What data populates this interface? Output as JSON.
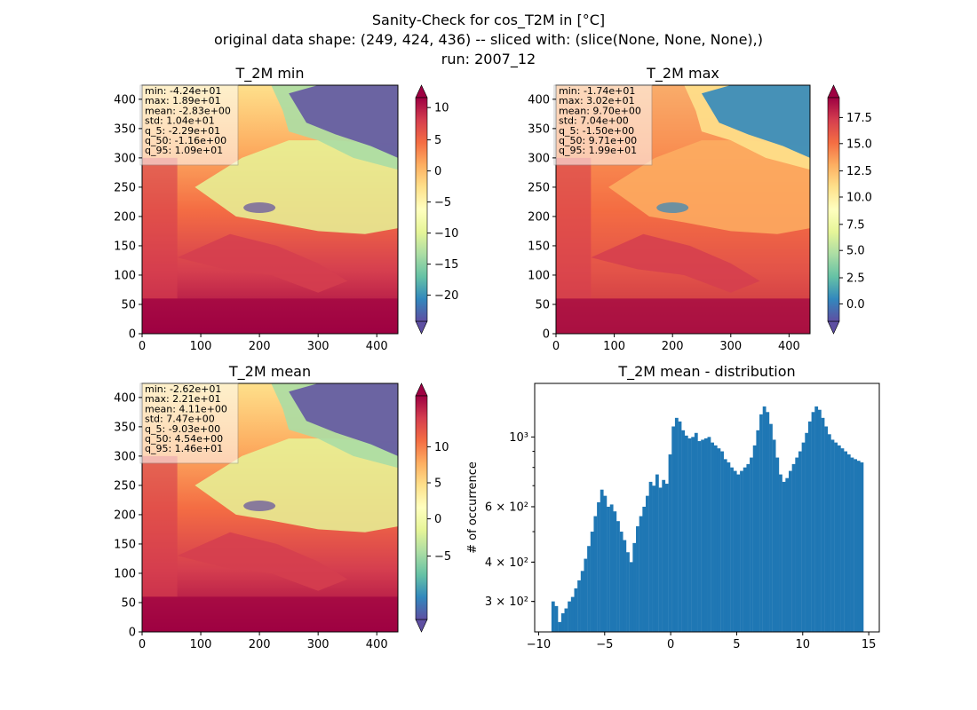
{
  "figure": {
    "title_lines": [
      "Sanity-Check for cos_T2M in [°C]",
      "original data shape: (249, 424, 436) -- sliced with: (slice(None, None, None),)",
      "run: 2007_12"
    ]
  },
  "colors": {
    "bar": "#1f77b4",
    "colormap": "Spectral_r",
    "colormap_stops": [
      "#5e4fa2",
      "#3288bd",
      "#66c2a5",
      "#abdda4",
      "#e6f598",
      "#ffffbf",
      "#fee08b",
      "#fdae61",
      "#f46d43",
      "#d53e4f",
      "#9e0142"
    ]
  },
  "maps": [
    {
      "title": "T_2M min",
      "stats": [
        "min: -4.24e+01",
        "max: 1.89e+01",
        "mean: -2.83e+00",
        "std: 1.04e+01",
        "q_5: -2.29e+01",
        "q_50: -1.16e+00",
        "q_95: 1.09e+01"
      ],
      "x_ticks": [
        "0",
        "100",
        "200",
        "300",
        "400"
      ],
      "y_ticks": [
        "0",
        "50",
        "100",
        "150",
        "200",
        "250",
        "300",
        "350",
        "400"
      ],
      "colorbar": {
        "ticks": [
          "10",
          "5",
          "0",
          "−5",
          "−10",
          "−15",
          "−20"
        ]
      }
    },
    {
      "title": "T_2M max",
      "stats": [
        "min: -1.74e+01",
        "max: 3.02e+01",
        "mean: 9.70e+00",
        "std: 7.04e+00",
        "q_5: -1.50e+00",
        "q_50: 9.71e+00",
        "q_95: 1.99e+01"
      ],
      "x_ticks": [
        "0",
        "100",
        "200",
        "300",
        "400"
      ],
      "y_ticks": [
        "0",
        "50",
        "100",
        "150",
        "200",
        "250",
        "300",
        "350",
        "400"
      ],
      "colorbar": {
        "ticks": [
          "17.5",
          "15.0",
          "12.5",
          "10.0",
          "7.5",
          "5.0",
          "2.5",
          "0.0"
        ]
      }
    },
    {
      "title": "T_2M mean",
      "stats": [
        "min: -2.62e+01",
        "max: 2.21e+01",
        "mean: 4.11e+00",
        "std: 7.47e+00",
        "q_5: -9.03e+00",
        "q_50: 4.54e+00",
        "q_95: 1.46e+01"
      ],
      "x_ticks": [
        "0",
        "100",
        "200",
        "300",
        "400"
      ],
      "y_ticks": [
        "0",
        "50",
        "100",
        "150",
        "200",
        "250",
        "300",
        "350",
        "400"
      ],
      "colorbar": {
        "ticks": [
          "10",
          "5",
          "0",
          "−5"
        ]
      }
    }
  ],
  "chart_data": {
    "type": "bar",
    "title": "T_2M mean - distribution",
    "xlabel": "",
    "ylabel": "# of occurrence",
    "xlim": [
      -10.3,
      15.8
    ],
    "ylim": [
      240,
      1480
    ],
    "y_scale": "log",
    "x_ticks": [
      "−10",
      "−5",
      "0",
      "5",
      "10",
      "15"
    ],
    "y_tick_labels": [
      "3 × 10²",
      "4 × 10²",
      "6 × 10²",
      "10³"
    ],
    "bin_range": [
      -9.03,
      14.6
    ],
    "bin_count": 94,
    "values": [
      300,
      290,
      258,
      275,
      285,
      300,
      310,
      330,
      350,
      375,
      410,
      450,
      500,
      560,
      620,
      680,
      650,
      600,
      610,
      580,
      540,
      500,
      470,
      430,
      400,
      460,
      520,
      560,
      600,
      650,
      720,
      700,
      760,
      690,
      730,
      710,
      880,
      1080,
      1150,
      1120,
      1050,
      1010,
      990,
      1000,
      1030,
      970,
      980,
      990,
      1000,
      960,
      940,
      920,
      900,
      850,
      830,
      800,
      780,
      760,
      780,
      800,
      820,
      860,
      940,
      1050,
      1180,
      1250,
      1200,
      1100,
      980,
      860,
      760,
      720,
      740,
      780,
      820,
      860,
      900,
      960,
      1030,
      1120,
      1200,
      1250,
      1220,
      1150,
      1080,
      1020,
      980,
      960,
      940,
      920,
      900,
      880,
      860,
      850,
      840,
      830
    ]
  }
}
